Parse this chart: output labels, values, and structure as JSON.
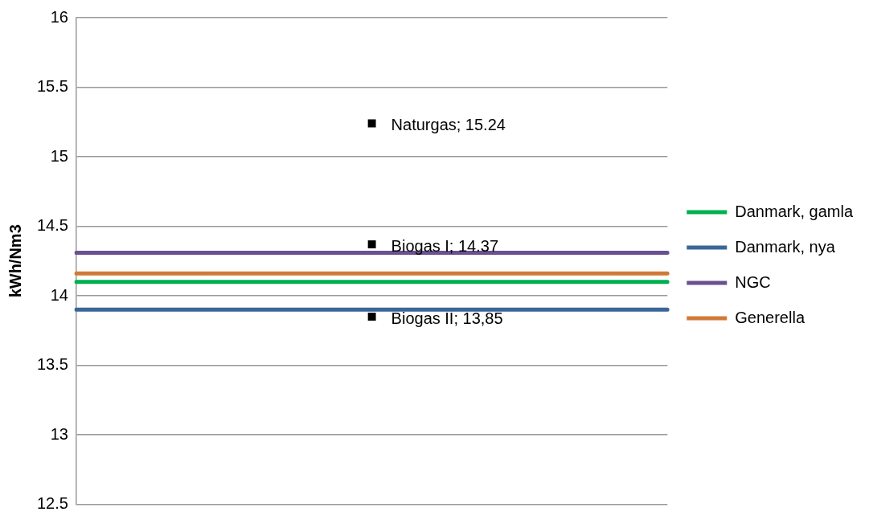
{
  "chart_data": {
    "type": "line",
    "ylabel": "kWh/Nm3",
    "categories": [
      null,
      null,
      null
    ],
    "ylim": [
      12.5,
      16
    ],
    "yticks": [
      12.5,
      13,
      13.5,
      14,
      14.5,
      15,
      15.5,
      16
    ],
    "grid": "y",
    "legend": "right",
    "series": [
      {
        "name": "Danmark, gamla",
        "color": "#00b050",
        "marker": "none",
        "values": [
          14.1,
          14.1,
          14.1
        ]
      },
      {
        "name": "Danmark, nya",
        "color": "#3a6699",
        "marker": "none",
        "values": [
          13.9,
          13.9,
          13.9
        ]
      },
      {
        "name": "NGC",
        "color": "#6a5090",
        "marker": "none",
        "values": [
          14.31,
          14.31,
          14.31
        ]
      },
      {
        "name": "Generella",
        "color": "#d07a38",
        "marker": "none",
        "values": [
          14.16,
          14.16,
          14.16
        ]
      },
      {
        "type": "scatter",
        "color": "#000000",
        "marker": "square",
        "values": [
          null,
          15.24,
          null
        ],
        "value_labels": [
          null,
          "Naturgas; 15.24",
          null
        ]
      },
      {
        "type": "scatter",
        "color": "#000000",
        "marker": "square",
        "values": [
          null,
          14.37,
          null
        ],
        "value_labels": [
          null,
          "Biogas I; 14.37",
          null
        ]
      },
      {
        "type": "scatter",
        "color": "#000000",
        "marker": "square",
        "values": [
          null,
          13.85,
          null
        ],
        "value_labels": [
          null,
          "Biogas II; 13,85",
          null
        ]
      }
    ]
  }
}
